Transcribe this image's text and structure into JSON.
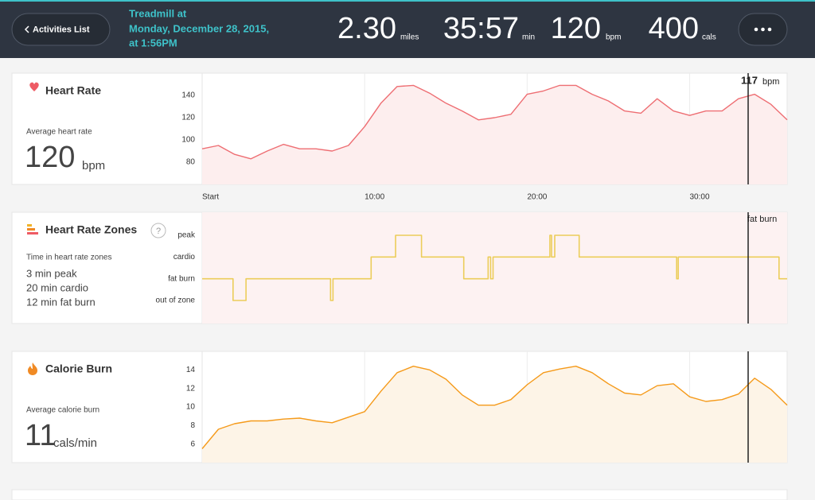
{
  "header": {
    "back_button": "Activities List",
    "title_lines": [
      "Treadmill at",
      "Monday, December 28, 2015,",
      "at 1:56PM"
    ],
    "stats": [
      {
        "value": "2.30",
        "unit": "miles"
      },
      {
        "value": "35:57",
        "unit": "min"
      },
      {
        "value": 120,
        "unit": "bpm"
      },
      {
        "value": 400,
        "unit": "cals"
      }
    ]
  },
  "time_axis": {
    "xlim": [
      0,
      36
    ],
    "xticks": [
      {
        "value": 0,
        "label": "Start"
      },
      {
        "value": 10,
        "label": "10:00"
      },
      {
        "value": 20,
        "label": "20:00"
      },
      {
        "value": 30,
        "label": "30:00"
      }
    ],
    "cursor_x": 33.6
  },
  "chart_data": [
    {
      "type": "line",
      "title": "Heart Rate",
      "summary_label": "Average heart rate",
      "summary_value": 120,
      "summary_unit": "bpm",
      "color": "#ee6e73",
      "fill": "#fdeeee",
      "x": [
        0,
        1,
        2,
        3,
        4,
        5,
        6,
        7,
        8,
        9,
        10,
        11,
        12,
        13,
        14,
        15,
        16,
        17,
        18,
        19,
        20,
        21,
        22,
        23,
        24,
        25,
        26,
        27,
        28,
        29,
        30,
        31,
        32,
        33,
        34,
        35,
        36
      ],
      "values": [
        92,
        95,
        87,
        83,
        90,
        96,
        92,
        92,
        90,
        95,
        112,
        133,
        148,
        149,
        142,
        133,
        126,
        118,
        120,
        123,
        141,
        144,
        149,
        149,
        141,
        135,
        126,
        124,
        137,
        126,
        122,
        126,
        126,
        137,
        141,
        132,
        118
      ],
      "ylim": [
        60,
        160
      ],
      "yticks": [
        80,
        100,
        120,
        140
      ],
      "cursor_value": 117,
      "cursor_unit": "bpm"
    },
    {
      "type": "step",
      "title": "Heart Rate Zones",
      "summary_label": "Time in heart rate zones",
      "summary_lines": [
        "3 min peak",
        "20 min cardio",
        "12 min fat burn"
      ],
      "help": "?",
      "color": "#eccd5a",
      "fill": "#fdf2f2",
      "x": [
        0,
        1.9,
        2.7,
        7.9,
        8.05,
        10.4,
        11.9,
        13.5,
        16.1,
        17.6,
        17.75,
        17.9,
        21.4,
        21.5,
        21.7,
        23.2,
        29.2,
        29.3,
        35.5
      ],
      "values": [
        1,
        0,
        1,
        0,
        1,
        2,
        3,
        2,
        1,
        2,
        1,
        2,
        3,
        2,
        3,
        2,
        1,
        2,
        1
      ],
      "ylim": [
        -1.06,
        4.06
      ],
      "yticks": [
        {
          "value": 3,
          "label": "peak"
        },
        {
          "value": 2,
          "label": "cardio"
        },
        {
          "value": 1,
          "label": "fat burn"
        },
        {
          "value": 0,
          "label": "out of zone"
        }
      ],
      "cursor_label": "fat burn"
    },
    {
      "type": "line",
      "title": "Calorie Burn",
      "summary_label": "Average calorie burn",
      "summary_value": 11,
      "summary_unit": "cals/min",
      "color": "#f59a1a",
      "fill": "#fdf4e7",
      "x": [
        0,
        1,
        2,
        3,
        4,
        5,
        6,
        7,
        8,
        9,
        10,
        11,
        12,
        13,
        14,
        15,
        16,
        17,
        18,
        19,
        20,
        21,
        22,
        23,
        24,
        25,
        26,
        27,
        28,
        29,
        30,
        31,
        32,
        33,
        34,
        35,
        36
      ],
      "values": [
        5.5,
        7.6,
        8.2,
        8.5,
        8.5,
        8.7,
        8.8,
        8.5,
        8.3,
        8.9,
        9.5,
        11.7,
        13.7,
        14.4,
        14,
        13,
        11.3,
        10.2,
        10.2,
        10.8,
        12.4,
        13.7,
        14.1,
        14.4,
        13.7,
        12.5,
        11.5,
        11.3,
        12.3,
        12.5,
        11.1,
        10.6,
        10.8,
        11.4,
        13.1,
        11.9,
        10.2
      ],
      "ylim": [
        4,
        16
      ],
      "yticks": [
        6,
        8,
        10,
        12,
        14
      ]
    }
  ]
}
